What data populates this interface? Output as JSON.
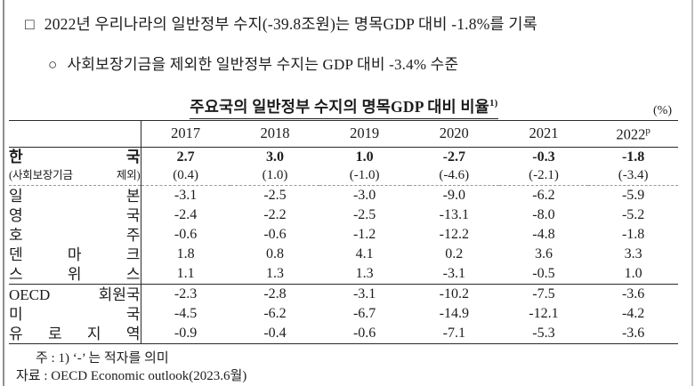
{
  "summary": {
    "bullet1": "□",
    "line1": "2022년 우리나라의 일반정부 수지(-39.8조원)는 명목GDP 대비 -1.8%를 기록",
    "bullet2": "○",
    "line2": "사회보장기금을 제외한 일반정부 수지는 GDP 대비 -3.4% 수준"
  },
  "table": {
    "title": "주요국의 일반정부 수지의 명목GDP 대비 비율",
    "title_superscript": "1)",
    "unit_label": "(%)",
    "columns": [
      {
        "label": "2017"
      },
      {
        "label": "2018"
      },
      {
        "label": "2019"
      },
      {
        "label": "2020"
      },
      {
        "label": "2021"
      },
      {
        "label": "2022",
        "sup": "p"
      }
    ],
    "rows": [
      {
        "label": "한 국",
        "bold": true,
        "values": [
          "2.7",
          "3.0",
          "1.0",
          "-2.7",
          "-0.3",
          "-1.8"
        ],
        "sub_label": "(사회보장기금 제외)",
        "sub_values": [
          "(0.4)",
          "(1.0)",
          "(-1.0)",
          "(-4.6)",
          "(-2.1)",
          "(-3.4)"
        ]
      },
      {
        "label": "일 본",
        "values": [
          "-3.1",
          "-2.5",
          "-3.0",
          "-9.0",
          "-6.2",
          "-5.9"
        ]
      },
      {
        "label": "영 국",
        "values": [
          "-2.4",
          "-2.2",
          "-2.5",
          "-13.1",
          "-8.0",
          "-5.2"
        ]
      },
      {
        "label": "호 주",
        "values": [
          "-0.6",
          "-0.6",
          "-1.2",
          "-12.2",
          "-4.8",
          "-1.8"
        ]
      },
      {
        "label": "덴 마 크",
        "values": [
          "1.8",
          "0.8",
          "4.1",
          "0.2",
          "3.6",
          "3.3"
        ]
      },
      {
        "label": "스 위 스",
        "values": [
          "1.1",
          "1.3",
          "1.3",
          "-3.1",
          "-0.5",
          "1.0"
        ]
      },
      {
        "label": "OECD 회원국",
        "group_start": true,
        "values": [
          "-2.3",
          "-2.8",
          "-3.1",
          "-10.2",
          "-7.5",
          "-3.6"
        ]
      },
      {
        "label": "미 국",
        "values": [
          "-4.5",
          "-6.2",
          "-6.7",
          "-14.9",
          "-12.1",
          "-4.2"
        ]
      },
      {
        "label": "유 로 지 역",
        "values": [
          "-0.9",
          "-0.4",
          "-0.6",
          "-7.1",
          "-5.3",
          "-3.6"
        ]
      }
    ]
  },
  "notes": {
    "note1": "주 :  1) ‘-’ 는 적자를 의미",
    "note2": "자료 : OECD Economic outlook(2023.6월)"
  }
}
